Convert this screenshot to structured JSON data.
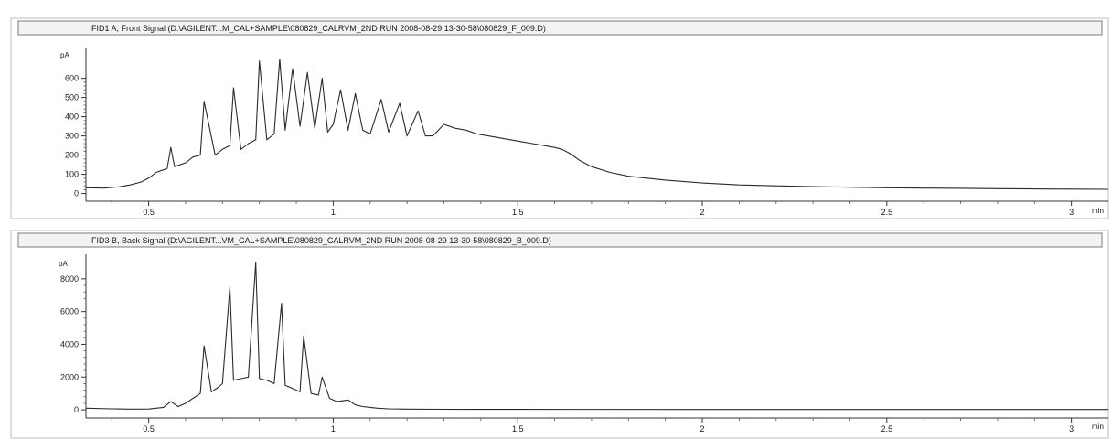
{
  "chart_data": [
    {
      "type": "line",
      "title": "FID1 A, Front Signal (D:\\AGILENT...M_CAL+SAMPLE\\080829_CALRVM_2ND RUN 2008-08-29 13-30-58\\080829_F_009.D)",
      "ylabel": "pA",
      "xlabel": "min",
      "xlim": [
        0.33,
        3.1
      ],
      "ylim": [
        -40,
        760
      ],
      "x_ticks": [
        0.5,
        1,
        1.5,
        2,
        2.5,
        3
      ],
      "x_tick_labels": [
        "0.5",
        "1",
        "1.5",
        "2",
        "2.5",
        "3"
      ],
      "y_ticks": [
        0,
        100,
        200,
        300,
        400,
        500,
        600
      ],
      "y_tick_labels": [
        "0",
        "100",
        "200",
        "300",
        "400",
        "500",
        "600"
      ],
      "line_color": "#2a2a2a",
      "series": [
        {
          "x": [
            0.33,
            0.38,
            0.42,
            0.45,
            0.48,
            0.5,
            0.52,
            0.55,
            0.56,
            0.57,
            0.6,
            0.62,
            0.64,
            0.65,
            0.68,
            0.7,
            0.72,
            0.73,
            0.75,
            0.77,
            0.79,
            0.8,
            0.82,
            0.84,
            0.855,
            0.87,
            0.89,
            0.91,
            0.93,
            0.95,
            0.97,
            0.985,
            1.0,
            1.02,
            1.04,
            1.06,
            1.08,
            1.1,
            1.13,
            1.15,
            1.18,
            1.2,
            1.23,
            1.25,
            1.27,
            1.3,
            1.33,
            1.36,
            1.39,
            1.42,
            1.45,
            1.48,
            1.51,
            1.54,
            1.57,
            1.6,
            1.62,
            1.64,
            1.67,
            1.7,
            1.75,
            1.8,
            1.9,
            2.0,
            2.1,
            2.2,
            2.3,
            2.4,
            2.5,
            2.6,
            2.7,
            2.8,
            2.9,
            3.0,
            3.1
          ],
          "y": [
            30,
            28,
            35,
            45,
            60,
            80,
            110,
            130,
            240,
            140,
            160,
            190,
            200,
            480,
            200,
            230,
            250,
            550,
            230,
            260,
            280,
            690,
            280,
            310,
            700,
            330,
            650,
            350,
            630,
            340,
            600,
            320,
            360,
            540,
            330,
            520,
            330,
            310,
            490,
            320,
            470,
            300,
            430,
            300,
            300,
            360,
            340,
            330,
            310,
            300,
            290,
            280,
            270,
            260,
            250,
            240,
            230,
            210,
            170,
            140,
            110,
            90,
            70,
            55,
            45,
            40,
            36,
            33,
            30,
            28,
            27,
            25,
            24,
            23,
            22
          ]
        }
      ]
    },
    {
      "type": "line",
      "title": "FID3 B, Back Signal (D:\\AGILENT...VM_CAL+SAMPLE\\080829_CALRVM_2ND RUN 2008-08-29 13-30-58\\080829_B_009.D)",
      "ylabel": "pA",
      "xlabel": "min",
      "xlim": [
        0.33,
        3.1
      ],
      "ylim": [
        -500,
        9500
      ],
      "x_ticks": [
        0.5,
        1,
        1.5,
        2,
        2.5,
        3
      ],
      "x_tick_labels": [
        "0.5",
        "1",
        "1.5",
        "2",
        "2.5",
        "3"
      ],
      "y_ticks": [
        0,
        2000,
        4000,
        6000,
        8000
      ],
      "y_tick_labels": [
        "0",
        "2000",
        "4000",
        "6000",
        "8000"
      ],
      "line_color": "#2a2a2a",
      "series": [
        {
          "x": [
            0.33,
            0.4,
            0.45,
            0.5,
            0.54,
            0.56,
            0.58,
            0.6,
            0.62,
            0.64,
            0.65,
            0.67,
            0.69,
            0.7,
            0.72,
            0.73,
            0.75,
            0.77,
            0.79,
            0.8,
            0.82,
            0.84,
            0.86,
            0.87,
            0.89,
            0.91,
            0.92,
            0.94,
            0.96,
            0.97,
            0.99,
            1.01,
            1.04,
            1.06,
            1.08,
            1.1,
            1.12,
            1.15,
            1.2,
            1.3,
            1.5,
            2.0,
            2.5,
            3.0,
            3.1
          ],
          "y": [
            100,
            60,
            40,
            50,
            150,
            500,
            200,
            400,
            700,
            1000,
            3900,
            1100,
            1400,
            1600,
            7500,
            1800,
            1900,
            2000,
            9000,
            1900,
            1800,
            1600,
            6500,
            1500,
            1300,
            1100,
            4500,
            1000,
            900,
            2000,
            700,
            500,
            600,
            300,
            200,
            150,
            100,
            60,
            40,
            30,
            25,
            20,
            20,
            20,
            20
          ]
        }
      ]
    }
  ]
}
